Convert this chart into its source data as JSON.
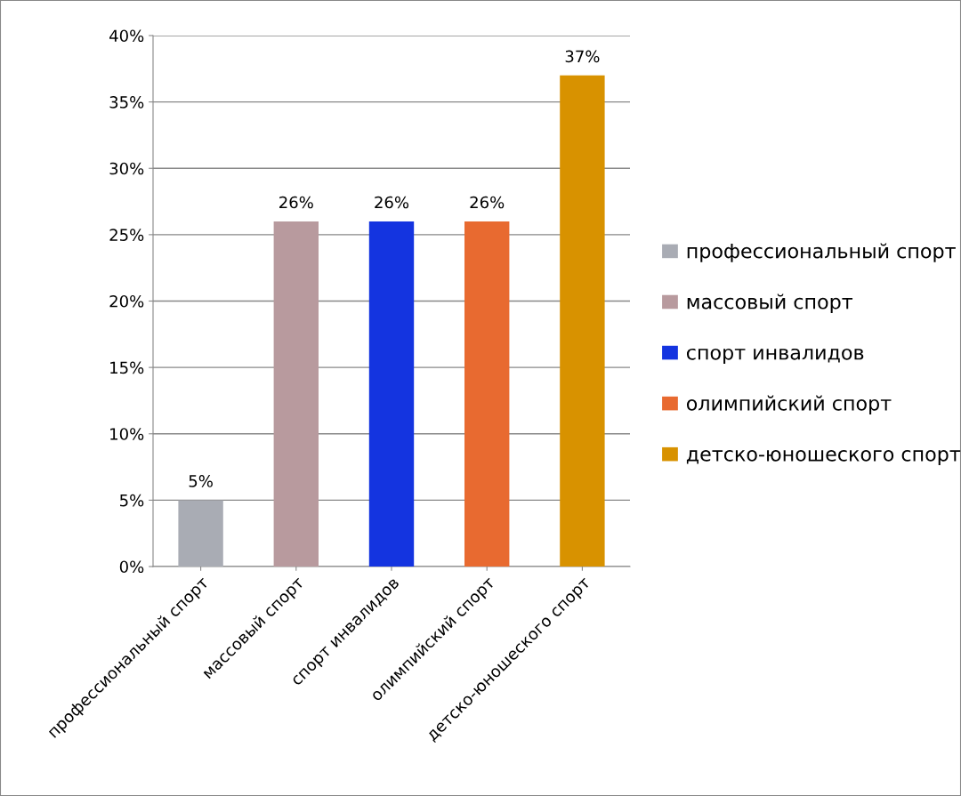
{
  "chart_data": {
    "type": "bar",
    "categories": [
      "профессиональный спорт",
      "массовый спорт",
      "спорт инвалидов",
      "олимпийский спорт",
      "детско-юношеского спорт"
    ],
    "series": [
      {
        "name": "профессиональный спорт",
        "color": "#a9acb4",
        "values": [
          5,
          null,
          null,
          null,
          null
        ]
      },
      {
        "name": "массовый спорт",
        "color": "#b89a9e",
        "values": [
          null,
          26,
          null,
          null,
          null
        ]
      },
      {
        "name": "спорт инвалидов",
        "color": "#1434e0",
        "values": [
          null,
          null,
          26,
          null,
          null
        ]
      },
      {
        "name": "олимпийский спорт",
        "color": "#e86a30",
        "values": [
          null,
          null,
          null,
          26,
          null
        ]
      },
      {
        "name": "детско-юношеского спорт",
        "color": "#d89200",
        "values": [
          null,
          null,
          null,
          null,
          37
        ]
      }
    ],
    "ylim": [
      0,
      40
    ],
    "yticks": [
      {
        "value": 0,
        "label": "0%"
      },
      {
        "value": 5,
        "label": "5%"
      },
      {
        "value": 10,
        "label": "10%"
      },
      {
        "value": 15,
        "label": "15%"
      },
      {
        "value": 20,
        "label": "20%"
      },
      {
        "value": 25,
        "label": "25%"
      },
      {
        "value": 30,
        "label": "30%"
      },
      {
        "value": 35,
        "label": "35%"
      },
      {
        "value": 40,
        "label": "40%"
      }
    ],
    "value_labels": [
      "5%",
      "26%",
      "26%",
      "26%",
      "37%"
    ],
    "grid": "y",
    "legend": "right"
  }
}
